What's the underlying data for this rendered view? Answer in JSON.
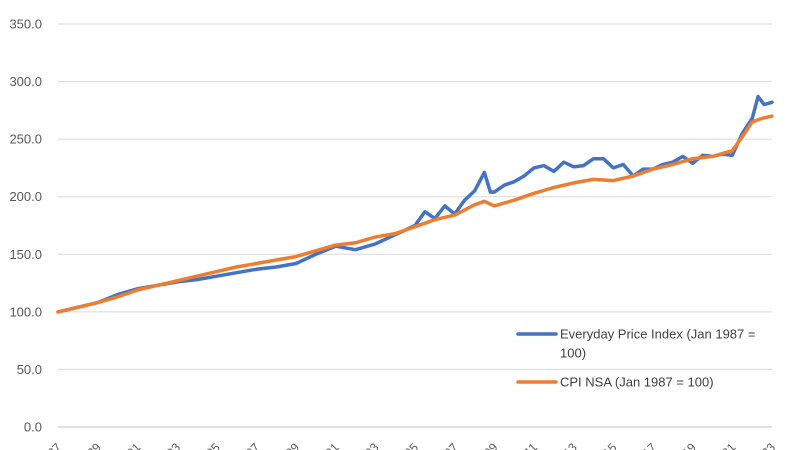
{
  "chart_data": {
    "type": "line",
    "title": "",
    "xlabel": "",
    "ylabel": "",
    "ylim": [
      0,
      350
    ],
    "y_ticks": [
      "0.0",
      "50.0",
      "100.0",
      "150.0",
      "200.0",
      "250.0",
      "300.0",
      "350.0"
    ],
    "x_ticks_visible": [
      "87",
      "89",
      "91",
      "93",
      "95",
      "97",
      "99",
      "01",
      "03",
      "05",
      "07",
      "09",
      "11",
      "13",
      "15",
      "17",
      "19",
      "21",
      "23"
    ],
    "x_range_years": [
      1987,
      2023
    ],
    "grid": "horizontal",
    "legend_position": "bottom-right",
    "colors": {
      "everyday": "#4472C4",
      "cpi": "#ED7D31",
      "grid": "#d9d9d9"
    },
    "series": [
      {
        "name": "Everyday Price Index (Jan 1987 = 100)",
        "legend_lines": [
          "Everyday Price Index (Jan 1987 =",
          "100)"
        ],
        "x": [
          1987.0,
          1988.0,
          1989.0,
          1990.0,
          1991.0,
          1992.0,
          1993.0,
          1994.0,
          1995.0,
          1996.0,
          1997.0,
          1998.0,
          1999.0,
          2000.0,
          2001.0,
          2002.0,
          2003.0,
          2004.0,
          2005.0,
          2005.5,
          2006.0,
          2006.5,
          2007.0,
          2007.5,
          2008.0,
          2008.5,
          2008.8,
          2009.0,
          2009.5,
          2010.0,
          2010.5,
          2011.0,
          2011.5,
          2012.0,
          2012.5,
          2013.0,
          2013.5,
          2014.0,
          2014.5,
          2015.0,
          2015.5,
          2016.0,
          2016.5,
          2017.0,
          2017.5,
          2018.0,
          2018.5,
          2019.0,
          2019.5,
          2020.0,
          2020.5,
          2021.0,
          2021.5,
          2022.0,
          2022.3,
          2022.6,
          2023.0
        ],
        "values": [
          100,
          104,
          108,
          115,
          120,
          123,
          126,
          128,
          131,
          134,
          137,
          139,
          142,
          150,
          157,
          154,
          159,
          167,
          175,
          187,
          181,
          192,
          185,
          197,
          205,
          221,
          204,
          204,
          210,
          213,
          218,
          225,
          227,
          222,
          230,
          226,
          227,
          233,
          233,
          225,
          228,
          218,
          224,
          224,
          228,
          230,
          235,
          229,
          236,
          235,
          237,
          236,
          255,
          268,
          287,
          280,
          282
        ]
      },
      {
        "name": "CPI NSA (Jan 1987 = 100)",
        "legend_lines": [
          "CPI NSA (Jan 1987 = 100)"
        ],
        "x": [
          1987.0,
          1988.0,
          1989.0,
          1990.0,
          1991.0,
          1992.0,
          1993.0,
          1994.0,
          1995.0,
          1996.0,
          1997.0,
          1998.0,
          1999.0,
          2000.0,
          2001.0,
          2002.0,
          2003.0,
          2004.0,
          2005.0,
          2006.0,
          2007.0,
          2008.0,
          2008.5,
          2009.0,
          2010.0,
          2011.0,
          2012.0,
          2013.0,
          2014.0,
          2015.0,
          2016.0,
          2017.0,
          2018.0,
          2019.0,
          2020.0,
          2021.0,
          2021.5,
          2022.0,
          2022.5,
          2023.0
        ],
        "values": [
          100,
          104,
          108,
          113,
          119,
          123,
          127,
          131,
          135,
          139,
          142,
          145,
          148,
          153,
          158,
          160,
          165,
          168,
          174,
          180,
          184,
          193,
          196,
          192,
          197,
          203,
          208,
          212,
          215,
          214,
          218,
          224,
          228,
          233,
          235,
          240,
          252,
          265,
          268,
          270
        ]
      }
    ]
  }
}
